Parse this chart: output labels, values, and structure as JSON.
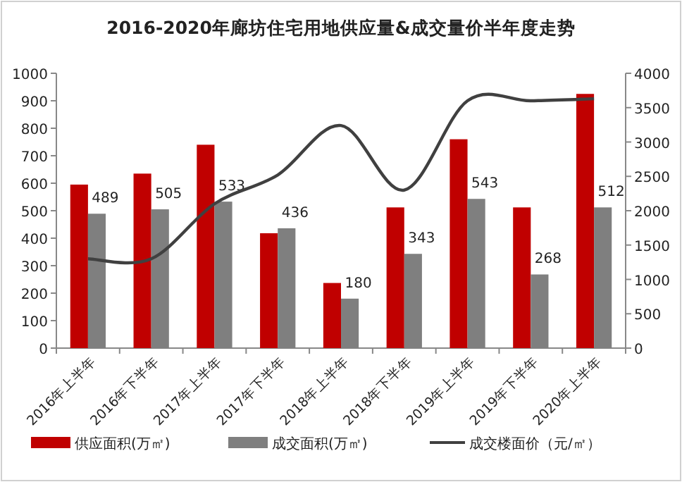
{
  "chart_data": {
    "type": "bar",
    "title": "2016-2020年廊坊住宅用地供应量&成交量价半年度走势",
    "categories": [
      "2016年上半年",
      "2016年下半年",
      "2017年上半年",
      "2017年下半年",
      "2018年上半年",
      "2018年下半年",
      "2019年上半年",
      "2019年下半年",
      "2020年上半年"
    ],
    "series": [
      {
        "name": "供应面积(万㎡)",
        "color": "#c00000",
        "values": [
          595,
          635,
          740,
          418,
          237,
          512,
          760,
          512,
          925
        ]
      },
      {
        "name": "成交面积(万㎡)",
        "color": "#7f7f7f",
        "values": [
          489,
          505,
          533,
          436,
          180,
          343,
          543,
          268,
          512
        ],
        "value_labels": [
          "489",
          "505",
          "533",
          "436",
          "180",
          "343",
          "543",
          "268",
          "512"
        ]
      },
      {
        "name": "成交楼面价（元/㎡）",
        "type": "line",
        "axis": "y2",
        "color": "#404040",
        "values": [
          1300,
          1300,
          2100,
          2520,
          3240,
          2300,
          3600,
          3600,
          3630
        ]
      }
    ],
    "ylim": [
      0,
      1000
    ],
    "yticks": [
      0,
      100,
      200,
      300,
      400,
      500,
      600,
      700,
      800,
      900,
      1000
    ],
    "y2lim": [
      0,
      4000
    ],
    "y2ticks": [
      0,
      500,
      1000,
      1500,
      2000,
      2500,
      3000,
      3500,
      4000
    ],
    "grid": false,
    "legend": "bottom"
  }
}
